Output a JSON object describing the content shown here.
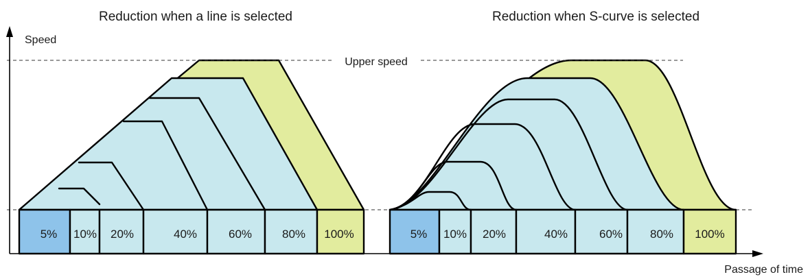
{
  "titles": {
    "left": "Reduction when a line is selected",
    "right": "Reduction when S-curve is selected"
  },
  "axes": {
    "y_label": "Speed",
    "x_label": "Passage of time",
    "upper_speed_label": "Upper speed"
  },
  "left_boxes": [
    "5%",
    "10%",
    "20%",
    "40%",
    "60%",
    "80%",
    "100%"
  ],
  "right_boxes": [
    "5%",
    "10%",
    "20%",
    "40%",
    "60%",
    "80%",
    "100%"
  ],
  "colors": {
    "light_blue": "#c8e8ee",
    "box_5_percent": "#8ec3ea",
    "yellow_green": "#e2ec9e",
    "outline": "#000000"
  }
}
